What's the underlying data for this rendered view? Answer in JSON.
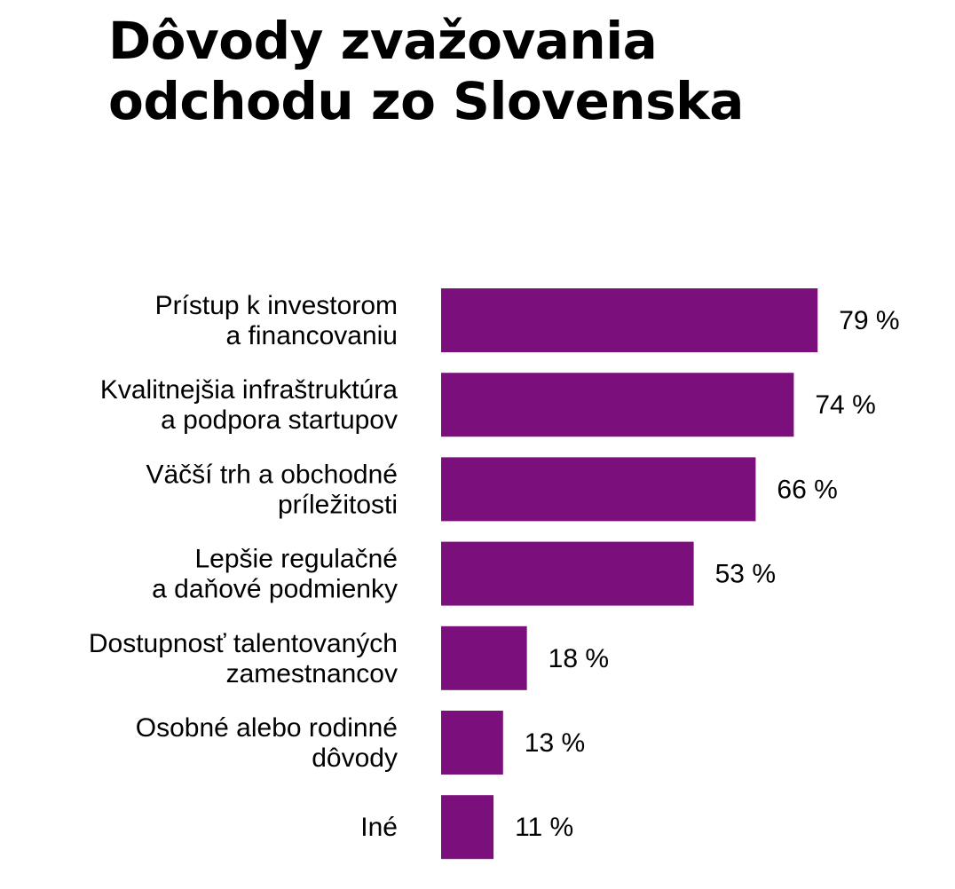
{
  "chart_data": {
    "type": "bar",
    "orientation": "horizontal",
    "title_lines": [
      "Dôvody zvažovania",
      "odchodu zo Slovenska"
    ],
    "categories": [
      [
        "Prístup k investorom",
        "a financovaniu"
      ],
      [
        "Kvalitnejšia infraštruktúra",
        "a podpora startupov"
      ],
      [
        "Väčší trh a obchodné",
        "príležitosti"
      ],
      [
        "Lepšie regulačné",
        "a daňové podmienky"
      ],
      [
        "Dostupnosť talentovaných",
        "zamestnancov"
      ],
      [
        "Osobné alebo rodinné",
        "dôvody"
      ],
      [
        "Iné"
      ]
    ],
    "values": [
      79,
      74,
      66,
      53,
      18,
      13,
      11
    ],
    "value_labels": [
      "79 %",
      "74 %",
      "66 %",
      "53 %",
      "18 %",
      "13 %",
      "11 %"
    ],
    "xlim": [
      0,
      100
    ],
    "grid": false,
    "legend": "none",
    "bar_color": "#7B0F7B"
  }
}
